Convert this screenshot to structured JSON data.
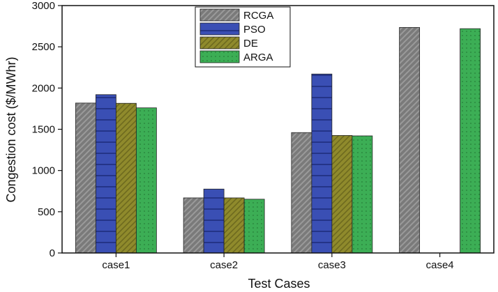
{
  "chart_data": {
    "type": "bar",
    "title": "",
    "xlabel": "Test Cases",
    "ylabel": "Congestion cost ($/MWhr)",
    "categories": [
      "case1",
      "case2",
      "case3",
      "case4"
    ],
    "ylim": [
      0,
      3000
    ],
    "yticks": [
      "0",
      "500",
      "1000",
      "1500",
      "2000",
      "2500",
      "3000"
    ],
    "legend_position": "top-center",
    "grid": false,
    "series": [
      {
        "name": "RCGA",
        "color": "#7a7a7a",
        "pattern": "diagonal-hatch",
        "values": [
          1818,
          668,
          1460,
          2735
        ]
      },
      {
        "name": "PSO",
        "color": "#3a4fb4",
        "pattern": "horizontal-lines",
        "values": [
          1920,
          775,
          2170,
          null
        ]
      },
      {
        "name": "DE",
        "color": "#8f8a2c",
        "pattern": "diagonal-hatch",
        "values": [
          1815,
          668,
          1425,
          null
        ]
      },
      {
        "name": "ARGA",
        "color": "#3cae55",
        "pattern": "dots",
        "values": [
          1760,
          652,
          1420,
          2720
        ]
      }
    ]
  }
}
